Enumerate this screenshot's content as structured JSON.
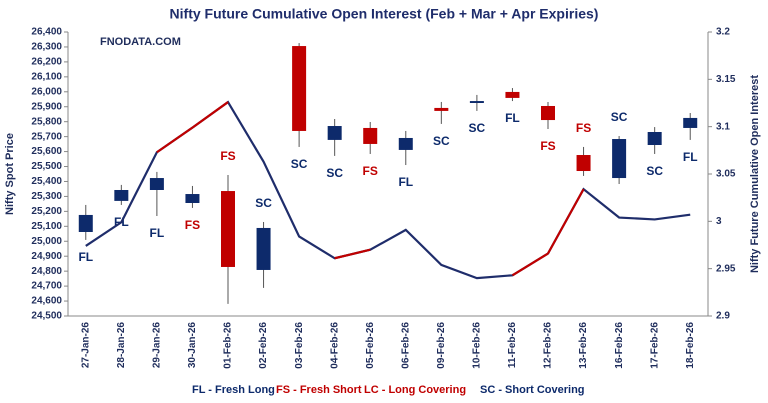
{
  "chart_data": {
    "type": "candlestick",
    "title": "Nifty Future Cumulative Open Interest (Feb + Mar + Apr Expiries)",
    "watermark": "FNODATA.COM",
    "y_label": "Nifty Spot Price",
    "y2_label": "Nifty Future Cumulative Open Interest",
    "categories": [
      "27-Jan-26",
      "28-Jan-26",
      "29-Jan-26",
      "30-Jan-26",
      "01-Feb-26",
      "02-Feb-26",
      "03-Feb-26",
      "04-Feb-26",
      "05-Feb-26",
      "06-Feb-26",
      "09-Feb-26",
      "10-Feb-26",
      "11-Feb-26",
      "12-Feb-26",
      "13-Feb-26",
      "16-Feb-26",
      "17-Feb-26",
      "18-Feb-26"
    ],
    "open": [
      25062,
      25270,
      25343,
      25256,
      25336,
      24808,
      26306,
      25678,
      25758,
      25611,
      25892,
      25925,
      25999,
      25905,
      25577,
      25423,
      25644,
      25758
    ],
    "high": [
      25243,
      25377,
      25464,
      25370,
      25443,
      25129,
      26326,
      25818,
      25798,
      25738,
      25932,
      25979,
      26025,
      25932,
      25631,
      25704,
      25764,
      25858
    ],
    "low": [
      25009,
      25243,
      25169,
      25223,
      24581,
      24688,
      25631,
      25571,
      25584,
      25510,
      25785,
      25872,
      25938,
      25751,
      25437,
      25383,
      25584,
      25678
    ],
    "close": [
      25176,
      25343,
      25423,
      25316,
      24828,
      25089,
      25738,
      25771,
      25651,
      25691,
      25872,
      25938,
      25959,
      25811,
      25470,
      25684,
      25731,
      25825
    ],
    "color_up": "#0d2a6b",
    "color_down": "#c00000",
    "signals": [
      "FL",
      "FL",
      "FL",
      "FS",
      "FS",
      "SC",
      "SC",
      "SC",
      "FS",
      "FL",
      "SC",
      "SC",
      "FL",
      "FS",
      "FS",
      "SC",
      "SC",
      "FL"
    ],
    "signal_colors": [
      "#0d2a6b",
      "#0d2a6b",
      "#0d2a6b",
      "#c00000",
      "#c00000",
      "#0d2a6b",
      "#0d2a6b",
      "#0d2a6b",
      "#c00000",
      "#0d2a6b",
      "#0d2a6b",
      "#0d2a6b",
      "#0d2a6b",
      "#c00000",
      "#c00000",
      "#0d2a6b",
      "#0d2a6b",
      "#0d2a6b"
    ],
    "line": {
      "axis": "y2",
      "color": "#1f2d6b",
      "highlight_color": "#c00000",
      "values": [
        2.974,
        2.999,
        3.073,
        3.099,
        3.126,
        3.063,
        2.984,
        2.961,
        2.97,
        2.991,
        2.954,
        2.94,
        2.943,
        2.966,
        3.034,
        3.004,
        3.002,
        3.007
      ]
    },
    "ylim": [
      24500,
      26400
    ],
    "yticks": [
      {
        "value": 24500,
        "label": "24,500"
      },
      {
        "value": 24600,
        "label": "24,600"
      },
      {
        "value": 24700,
        "label": "24,700"
      },
      {
        "value": 24800,
        "label": "24,800"
      },
      {
        "value": 24900,
        "label": "24,900"
      },
      {
        "value": 25000,
        "label": "25,000"
      },
      {
        "value": 25100,
        "label": "25,100"
      },
      {
        "value": 25200,
        "label": "25,200"
      },
      {
        "value": 25300,
        "label": "25,300"
      },
      {
        "value": 25400,
        "label": "25,400"
      },
      {
        "value": 25500,
        "label": "25,500"
      },
      {
        "value": 25600,
        "label": "25,600"
      },
      {
        "value": 25700,
        "label": "25,700"
      },
      {
        "value": 25800,
        "label": "25,800"
      },
      {
        "value": 25900,
        "label": "25,900"
      },
      {
        "value": 26000,
        "label": "26,000"
      },
      {
        "value": 26100,
        "label": "26,100"
      },
      {
        "value": 26200,
        "label": "26,200"
      },
      {
        "value": 26300,
        "label": "26,300"
      },
      {
        "value": 26400,
        "label": "26,400"
      }
    ],
    "y2lim": [
      2.9,
      3.2
    ],
    "y2ticks": [
      2.9,
      2.95,
      3,
      3.05,
      3.1,
      3.15,
      3.2
    ],
    "legend": [
      {
        "text": "FL - Fresh Long",
        "color": "#0d2a6b"
      },
      {
        "text": "FS - Fresh Short",
        "color": "#c00000"
      },
      {
        "text": "LC - Long Covering",
        "color": "#c00000"
      },
      {
        "text": "SC - Short Covering",
        "color": "#0d2a6b"
      }
    ]
  }
}
